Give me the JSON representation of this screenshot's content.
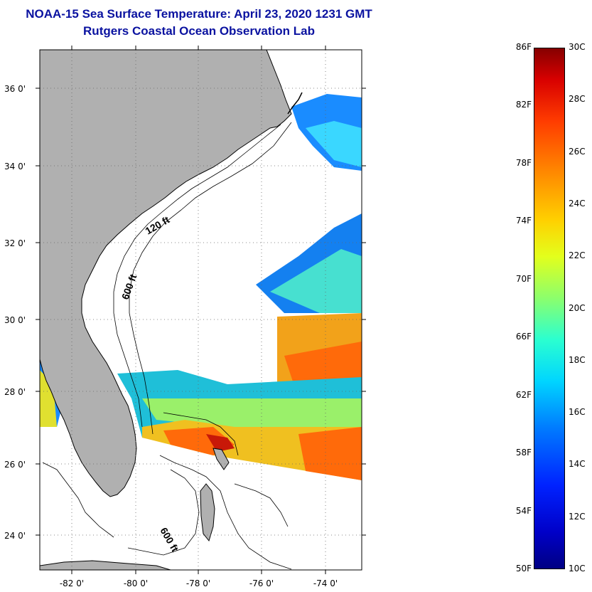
{
  "header": {
    "title": "NOAA-15 Sea Surface Temperature:  April 23, 2020 1231 GMT",
    "subtitle": "Rutgers Coastal Ocean Observation Lab"
  },
  "map": {
    "lat_labels": [
      "36 0'",
      "34 0'",
      "32 0'",
      "30 0'",
      "28 0'",
      "26 0'",
      "24 0'"
    ],
    "lon_labels": [
      "-82 0'",
      "-80 0'",
      "-78 0'",
      "-76 0'",
      "-74 0'"
    ],
    "contour_labels": [
      "120 ft",
      "600 ft",
      "600 ft"
    ]
  },
  "colorbar": {
    "fahrenheit_labels": [
      "86F",
      "82F",
      "78F",
      "74F",
      "70F",
      "66F",
      "62F",
      "58F",
      "54F",
      "50F"
    ],
    "celsius_labels": [
      "30C",
      "28C",
      "26C",
      "24C",
      "22C",
      "20C",
      "18C",
      "16C",
      "14C",
      "12C",
      "10C"
    ]
  }
}
